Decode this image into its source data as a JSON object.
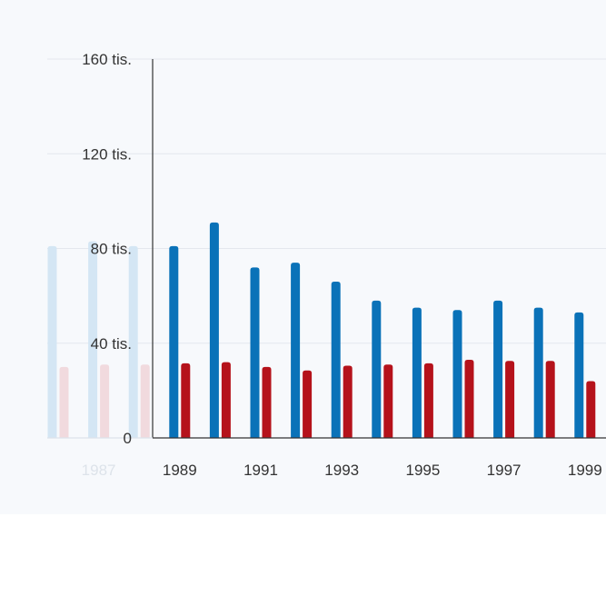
{
  "chart_data": {
    "type": "bar",
    "title": "",
    "xlabel": "",
    "ylabel": "",
    "ylim": [
      0,
      160000
    ],
    "y_ticks": [
      {
        "value": 0,
        "label": "0"
      },
      {
        "value": 40000,
        "label": "40 tis."
      },
      {
        "value": 80000,
        "label": "80 tis."
      },
      {
        "value": 120000,
        "label": "120 tis."
      },
      {
        "value": 160000,
        "label": "160 tis."
      }
    ],
    "grid": true,
    "categories": [
      "1986",
      "1987",
      "1988",
      "1989",
      "1990",
      "1991",
      "1992",
      "1993",
      "1994",
      "1995",
      "1996",
      "1997",
      "1998",
      "1999"
    ],
    "x_tick_labels": [
      "1987",
      "1989",
      "1991",
      "1993",
      "1995",
      "1997",
      "1999"
    ],
    "faded_categories": [
      "1986",
      "1987",
      "1988"
    ],
    "series": [
      {
        "color": "#0a72b8",
        "faded_color": "#d4e6f4",
        "values": [
          81000,
          83000,
          81000,
          81000,
          91000,
          72000,
          74000,
          66000,
          58000,
          55000,
          54000,
          58000,
          55000,
          53000
        ]
      },
      {
        "color": "#b5121b",
        "faded_color": "#f1dade",
        "values": [
          30000,
          31000,
          31000,
          31500,
          32000,
          30000,
          28500,
          30500,
          31000,
          31500,
          33000,
          32500,
          32500,
          24000
        ]
      }
    ]
  }
}
